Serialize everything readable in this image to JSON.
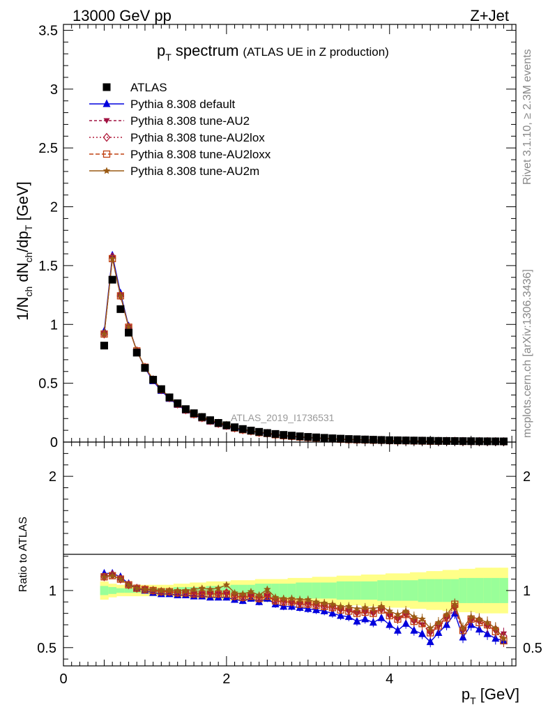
{
  "header": {
    "left": "13000 GeV pp",
    "right": "Z+Jet"
  },
  "title": {
    "main": "p",
    "main_sub": "T",
    "main_rest": " spectrum",
    "small": "(ATLAS UE in Z production)"
  },
  "side_labels": {
    "rivet": "Rivet 3.1.10, ≥ 2.3M events",
    "mcplots": "mcplots.cern.ch [arXiv:1306.3436]"
  },
  "watermark": "ATLAS_2019_I1736531",
  "legend": [
    {
      "label": "ATLAS",
      "marker": "square",
      "color": "#000000"
    },
    {
      "label": "Pythia 8.308 default",
      "marker": "triangle-up",
      "color": "#0000dd"
    },
    {
      "label": "Pythia 8.308 tune-AU2",
      "marker": "triangle-down",
      "color": "#a01040"
    },
    {
      "label": "Pythia 8.308 tune-AU2lox",
      "marker": "diamond-open",
      "color": "#b01838"
    },
    {
      "label": "Pythia 8.308 tune-AU2loxx",
      "marker": "square-open",
      "color": "#c04010"
    },
    {
      "label": "Pythia 8.308 tune-AU2m",
      "marker": "star",
      "color": "#9a5a14"
    }
  ],
  "axes": {
    "ylabel_top": "1/N_ch dN_ch/dp_T [GeV]",
    "ylabel_bottom": "Ratio to ATLAS",
    "xlabel": "p_T [GeV]",
    "top_yticks": [
      "0",
      "0.5",
      "1",
      "1.5",
      "2",
      "2.5",
      "3",
      "3.5"
    ],
    "bottom_yticks": [
      "0.5",
      "1",
      "2"
    ],
    "xticks": [
      "0",
      "2",
      "4"
    ]
  },
  "chart_data": {
    "type": "line",
    "title": "p_T spectrum (ATLAS UE in Z production)",
    "xlabel": "p_T [GeV]",
    "ylabel": "1/N_ch dN_ch/dp_T [GeV]",
    "xlim": [
      0,
      5.55
    ],
    "ylim": [
      0,
      3.55
    ],
    "ratio_ylim": [
      0.34,
      2.3
    ],
    "ratio_ylabel": "Ratio to ATLAS",
    "x": [
      0.5,
      0.6,
      0.7,
      0.8,
      0.9,
      1.0,
      1.1,
      1.2,
      1.3,
      1.4,
      1.5,
      1.6,
      1.7,
      1.8,
      1.9,
      2.0,
      2.1,
      2.2,
      2.3,
      2.4,
      2.5,
      2.6,
      2.7,
      2.8,
      2.9,
      3.0,
      3.1,
      3.2,
      3.3,
      3.4,
      3.5,
      3.6,
      3.7,
      3.8,
      3.9,
      4.0,
      4.1,
      4.2,
      4.3,
      4.4,
      4.5,
      4.6,
      4.7,
      4.8,
      4.9,
      5.0,
      5.1,
      5.2,
      5.3,
      5.4
    ],
    "atlas": [
      0.82,
      1.38,
      1.13,
      0.93,
      0.76,
      0.63,
      0.53,
      0.45,
      0.38,
      0.33,
      0.28,
      0.245,
      0.213,
      0.186,
      0.163,
      0.143,
      0.126,
      0.111,
      0.098,
      0.087,
      0.077,
      0.069,
      0.061,
      0.055,
      0.049,
      0.044,
      0.04,
      0.036,
      0.032,
      0.029,
      0.026,
      0.024,
      0.022,
      0.02,
      0.018,
      0.016,
      0.015,
      0.014,
      0.013,
      0.012,
      0.011,
      0.01,
      0.0095,
      0.0088,
      0.0082,
      0.0076,
      0.0071,
      0.0066,
      0.0062,
      0.0058
    ],
    "series": [
      {
        "name": "Pythia 8.308 default",
        "ratio": [
          1.15,
          1.15,
          1.12,
          1.06,
          1.02,
          1.0,
          0.98,
          0.97,
          0.97,
          0.96,
          0.96,
          0.95,
          0.95,
          0.94,
          0.94,
          0.94,
          0.92,
          0.91,
          0.93,
          0.9,
          0.93,
          0.88,
          0.86,
          0.86,
          0.85,
          0.84,
          0.83,
          0.82,
          0.8,
          0.78,
          0.77,
          0.73,
          0.75,
          0.72,
          0.76,
          0.7,
          0.65,
          0.71,
          0.65,
          0.62,
          0.55,
          0.63,
          0.7,
          0.8,
          0.59,
          0.7,
          0.66,
          0.62,
          0.58,
          0.56
        ]
      },
      {
        "name": "Pythia 8.308 tune-AU2",
        "ratio": [
          1.12,
          1.13,
          1.1,
          1.05,
          1.02,
          1.01,
          1.0,
          0.99,
          0.99,
          0.98,
          0.98,
          0.97,
          0.97,
          0.97,
          0.97,
          0.97,
          0.95,
          0.94,
          0.95,
          0.93,
          0.95,
          0.91,
          0.9,
          0.89,
          0.88,
          0.88,
          0.87,
          0.86,
          0.85,
          0.83,
          0.82,
          0.8,
          0.81,
          0.8,
          0.83,
          0.78,
          0.75,
          0.78,
          0.73,
          0.7,
          0.63,
          0.68,
          0.75,
          0.84,
          0.64,
          0.74,
          0.72,
          0.68,
          0.64,
          0.62
        ]
      },
      {
        "name": "Pythia 8.308 tune-AU2lox",
        "ratio": [
          1.12,
          1.14,
          1.1,
          1.05,
          1.02,
          1.01,
          1.0,
          0.99,
          0.99,
          0.98,
          0.98,
          0.97,
          0.97,
          0.98,
          0.97,
          0.98,
          0.95,
          0.94,
          0.96,
          0.93,
          0.96,
          0.91,
          0.9,
          0.9,
          0.89,
          0.88,
          0.87,
          0.86,
          0.85,
          0.84,
          0.83,
          0.81,
          0.82,
          0.81,
          0.84,
          0.79,
          0.76,
          0.8,
          0.74,
          0.72,
          0.64,
          0.7,
          0.77,
          0.86,
          0.66,
          0.75,
          0.74,
          0.7,
          0.66,
          0.6
        ]
      },
      {
        "name": "Pythia 8.308 tune-AU2loxx",
        "ratio": [
          1.12,
          1.13,
          1.1,
          1.05,
          1.02,
          1.01,
          1.0,
          0.99,
          0.99,
          0.98,
          0.98,
          0.97,
          0.97,
          0.97,
          0.97,
          0.97,
          0.95,
          0.94,
          0.95,
          0.93,
          0.95,
          0.91,
          0.9,
          0.9,
          0.88,
          0.88,
          0.87,
          0.86,
          0.85,
          0.83,
          0.82,
          0.8,
          0.81,
          0.8,
          0.83,
          0.78,
          0.75,
          0.79,
          0.73,
          0.71,
          0.63,
          0.69,
          0.76,
          0.88,
          0.65,
          0.75,
          0.72,
          0.7,
          0.64,
          0.56
        ]
      },
      {
        "name": "Pythia 8.308 tune-AU2m",
        "ratio": [
          1.12,
          1.13,
          1.1,
          1.05,
          1.02,
          1.01,
          1.01,
          1.0,
          1.0,
          1.0,
          1.0,
          1.01,
          1.02,
          1.01,
          1.02,
          1.05,
          0.98,
          0.97,
          0.99,
          0.96,
          1.01,
          0.94,
          0.93,
          0.93,
          0.92,
          0.92,
          0.9,
          0.89,
          0.88,
          0.86,
          0.86,
          0.84,
          0.85,
          0.84,
          0.86,
          0.82,
          0.79,
          0.82,
          0.77,
          0.75,
          0.67,
          0.72,
          0.79,
          0.88,
          0.67,
          0.77,
          0.75,
          0.72,
          0.67,
          0.58
        ]
      }
    ],
    "atlas_band_green": [
      0.04,
      0.03,
      0.02,
      0.02,
      0.02,
      0.02,
      0.02,
      0.02,
      0.02,
      0.03,
      0.03,
      0.03,
      0.03,
      0.04,
      0.04,
      0.04,
      0.05,
      0.05,
      0.05,
      0.06,
      0.06,
      0.06,
      0.06,
      0.06,
      0.07,
      0.07,
      0.07,
      0.07,
      0.07,
      0.08,
      0.08,
      0.08,
      0.08,
      0.08,
      0.09,
      0.09,
      0.09,
      0.09,
      0.09,
      0.1,
      0.1,
      0.1,
      0.1,
      0.1,
      0.11,
      0.11,
      0.11,
      0.11,
      0.11,
      0.11
    ],
    "atlas_band_yellow": [
      0.08,
      0.06,
      0.05,
      0.05,
      0.05,
      0.05,
      0.05,
      0.05,
      0.05,
      0.06,
      0.06,
      0.07,
      0.07,
      0.08,
      0.08,
      0.08,
      0.09,
      0.09,
      0.09,
      0.1,
      0.1,
      0.1,
      0.1,
      0.11,
      0.11,
      0.11,
      0.12,
      0.12,
      0.12,
      0.13,
      0.13,
      0.13,
      0.14,
      0.14,
      0.14,
      0.15,
      0.15,
      0.15,
      0.16,
      0.16,
      0.17,
      0.17,
      0.18,
      0.18,
      0.19,
      0.19,
      0.2,
      0.2,
      0.2,
      0.2
    ]
  }
}
